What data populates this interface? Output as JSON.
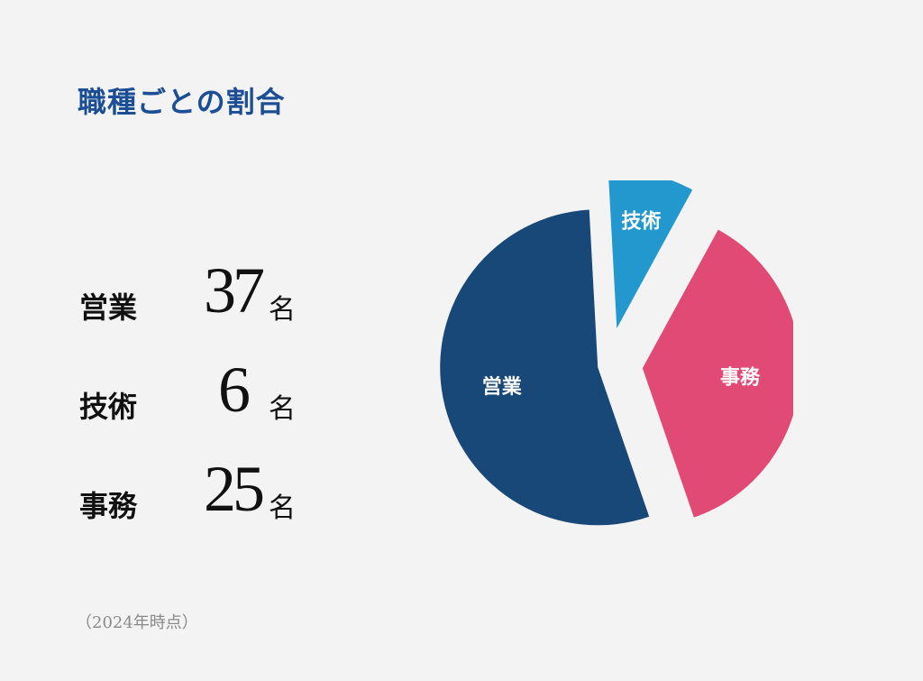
{
  "title": "職種ごとの割合",
  "colors": {
    "title": "#1c4e96",
    "sales": "#184878",
    "technical": "#2398cf",
    "clerical": "#e24a76",
    "background": "#f3f3f3"
  },
  "stats": [
    {
      "label": "営業",
      "value": "37",
      "unit": "名"
    },
    {
      "label": "技術",
      "value": "6",
      "unit": "名"
    },
    {
      "label": "事務",
      "value": "25",
      "unit": "名"
    }
  ],
  "note": "（2024年時点）",
  "chart_data": {
    "type": "pie",
    "exploded": true,
    "categories": [
      "営業",
      "技術",
      "事務"
    ],
    "values": [
      37,
      6,
      25
    ],
    "colors": [
      "#184878",
      "#2398cf",
      "#e24a76"
    ],
    "legend": "none"
  }
}
